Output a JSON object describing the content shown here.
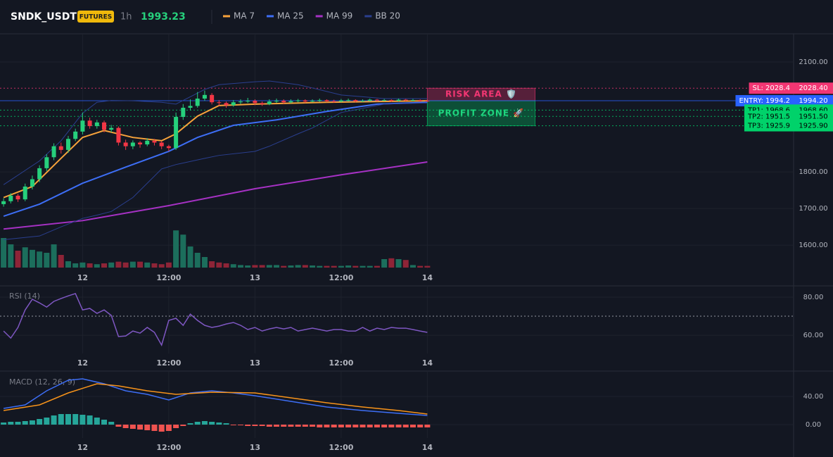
{
  "header": {
    "symbol": "SNDK_USDT",
    "badge": "FUTURES",
    "interval": "1h",
    "price": 1993.23
  },
  "chart_data": [
    {
      "type": "candlestick",
      "xlim": [
        -0.5,
        110
      ],
      "xticks": [
        {
          "value": 11,
          "label": "12"
        },
        {
          "value": 23,
          "label": "12:00"
        },
        {
          "value": 35,
          "label": "13"
        },
        {
          "value": 47,
          "label": "12:00"
        },
        {
          "value": 59,
          "label": "14"
        }
      ],
      "ylim": [
        1535,
        2173
      ],
      "yticks": [
        {
          "value": 1600,
          "label": "1600.00"
        },
        {
          "value": 1700,
          "label": "1700.00"
        },
        {
          "value": 1800,
          "label": "1800.00"
        },
        {
          "value": 2100,
          "label": "2100.00"
        }
      ],
      "grid": true,
      "up_color": "#26d07c",
      "down_color": "#f23645",
      "ohlc": [
        [
          1712,
          1728,
          1705,
          1720
        ],
        [
          1720,
          1742,
          1714,
          1735
        ],
        [
          1735,
          1740,
          1718,
          1725
        ],
        [
          1725,
          1768,
          1720,
          1760
        ],
        [
          1760,
          1790,
          1752,
          1780
        ],
        [
          1780,
          1818,
          1772,
          1810
        ],
        [
          1810,
          1848,
          1802,
          1840
        ],
        [
          1840,
          1878,
          1832,
          1870
        ],
        [
          1870,
          1880,
          1850,
          1860
        ],
        [
          1860,
          1898,
          1852,
          1890
        ],
        [
          1890,
          1918,
          1884,
          1910
        ],
        [
          1910,
          1962,
          1902,
          1940
        ],
        [
          1940,
          1948,
          1918,
          1925
        ],
        [
          1925,
          1942,
          1918,
          1935
        ],
        [
          1935,
          1940,
          1908,
          1915
        ],
        [
          1915,
          1928,
          1908,
          1920
        ],
        [
          1920,
          1924,
          1872,
          1880
        ],
        [
          1880,
          1888,
          1860,
          1870
        ],
        [
          1870,
          1886,
          1862,
          1880
        ],
        [
          1880,
          1884,
          1866,
          1875
        ],
        [
          1875,
          1892,
          1870,
          1885
        ],
        [
          1885,
          1890,
          1872,
          1880
        ],
        [
          1880,
          1884,
          1862,
          1870
        ],
        [
          1870,
          1874,
          1856,
          1865
        ],
        [
          1865,
          1962,
          1860,
          1950
        ],
        [
          1950,
          1985,
          1942,
          1975
        ],
        [
          1975,
          1998,
          1968,
          1980
        ],
        [
          1980,
          2018,
          1975,
          2000
        ],
        [
          2000,
          2022,
          1994,
          2010
        ],
        [
          2010,
          2015,
          1984,
          1990
        ],
        [
          1990,
          1996,
          1980,
          1988
        ],
        [
          1988,
          1992,
          1975,
          1982
        ],
        [
          1982,
          1996,
          1978,
          1990
        ],
        [
          1990,
          1998,
          1985,
          1992
        ],
        [
          1992,
          2002,
          1988,
          1994
        ],
        [
          1994,
          1998,
          1982,
          1988
        ],
        [
          1988,
          1992,
          1980,
          1985
        ],
        [
          1985,
          1998,
          1982,
          1992
        ],
        [
          1992,
          2000,
          1988,
          1994
        ],
        [
          1994,
          1998,
          1986,
          1990
        ],
        [
          1990,
          1998,
          1987,
          1993
        ],
        [
          1993,
          1999,
          1990,
          1995
        ],
        [
          1995,
          1998,
          1988,
          1992
        ],
        [
          1992,
          1998,
          1990,
          1994
        ],
        [
          1994,
          2000,
          1991,
          1996
        ],
        [
          1996,
          1998,
          1990,
          1993
        ],
        [
          1993,
          1997,
          1989,
          1992
        ],
        [
          1992,
          1999,
          1990,
          1995
        ],
        [
          1995,
          2000,
          1992,
          1996
        ],
        [
          1996,
          1998,
          1990,
          1993
        ],
        [
          1993,
          1998,
          1991,
          1994
        ],
        [
          1994,
          2000,
          1992,
          1997
        ],
        [
          1997,
          1999,
          1992,
          1995
        ],
        [
          1995,
          1999,
          1993,
          1996
        ],
        [
          1996,
          1998,
          1991,
          1994
        ],
        [
          1994,
          2000,
          1992,
          1997
        ],
        [
          1997,
          1999,
          1993,
          1995
        ],
        [
          1995,
          1999,
          1993,
          1996
        ],
        [
          1996,
          1998,
          1991,
          1994
        ],
        [
          1994,
          1997,
          1991,
          1993.23
        ]
      ],
      "volume": [
        70,
        55,
        40,
        48,
        42,
        38,
        35,
        55,
        30,
        15,
        10,
        12,
        10,
        8,
        10,
        12,
        14,
        12,
        14,
        14,
        12,
        10,
        8,
        12,
        88,
        78,
        50,
        35,
        25,
        15,
        12,
        10,
        8,
        6,
        5,
        6,
        6,
        6,
        6,
        4,
        5,
        6,
        6,
        5,
        4,
        4,
        4,
        4,
        5,
        4,
        4,
        4,
        4,
        20,
        22,
        20,
        18,
        6,
        4,
        4
      ],
      "volume_lim": [
        0,
        100
      ],
      "volume_up_color": "#1c6e5c",
      "volume_down_color": "#8e2437",
      "series": [
        {
          "name": "MA 7",
          "color": "#f7a23b",
          "x": [
            0,
            4,
            8,
            11,
            14,
            18,
            22,
            24,
            27,
            30,
            35,
            45,
            59
          ],
          "values": [
            1730,
            1760,
            1837,
            1894,
            1913,
            1894,
            1885,
            1904,
            1952,
            1981,
            1985,
            1990,
            1994
          ]
        },
        {
          "name": "MA 25",
          "color": "#3d6ef5",
          "x": [
            0,
            5,
            11,
            17,
            23,
            27,
            32,
            38,
            45,
            52,
            59
          ],
          "values": [
            1679,
            1712,
            1769,
            1813,
            1856,
            1894,
            1927,
            1942,
            1965,
            1985,
            1990
          ]
        },
        {
          "name": "MA 99",
          "color": "#a631c4",
          "x": [
            0,
            11,
            23,
            35,
            47,
            59
          ],
          "values": [
            1644,
            1667,
            1708,
            1754,
            1792,
            1827
          ]
        },
        {
          "name": "BB 20",
          "color": "#2a3f8f",
          "x": [
            0,
            5,
            8,
            11,
            13,
            15,
            18,
            22,
            24,
            28,
            30,
            35,
            37,
            41,
            43,
            47,
            53,
            59
          ],
          "upper": [
            1765,
            1830,
            1885,
            1960,
            1990,
            1995,
            1994,
            1990,
            1985,
            2025,
            2038,
            2046,
            2048,
            2038,
            2029,
            2010,
            2000,
            2000
          ],
          "lower": [
            1615,
            1625,
            1650,
            1673,
            1682,
            1692,
            1730,
            1808,
            1820,
            1837,
            1845,
            1856,
            1870,
            1904,
            1920,
            1962,
            1985,
            1988
          ]
        }
      ],
      "levels": [
        {
          "label": "SL: 2028.4",
          "price_label": "2028.40",
          "value": 2028.4,
          "color": "#f23673",
          "text_color": "#ffffff",
          "style": "dotted"
        },
        {
          "label": "ENTRY: 1994.2",
          "price_label": "1994.20",
          "value": 1994.2,
          "color": "#2962ff",
          "text_color": "#ffffff",
          "style": "solid"
        },
        {
          "label": "TP1: 1968.6",
          "price_label": "1968.60",
          "value": 1968.6,
          "color": "#00d26a",
          "text_color": "#000000",
          "style": "dotted"
        },
        {
          "label": "TP2: 1951.5",
          "price_label": "1951.50",
          "value": 1951.5,
          "color": "#00d26a",
          "text_color": "#000000",
          "style": "dotted"
        },
        {
          "label": "TP3: 1925.9",
          "price_label": "1925.90",
          "value": 1925.9,
          "color": "#00d26a",
          "text_color": "#000000",
          "style": "dotted"
        }
      ],
      "zones": [
        {
          "label": "RISK AREA 🛡️",
          "from": 1994.2,
          "to": 2028.4,
          "x_range": [
            59,
            74
          ],
          "color": "#f23673",
          "text_color": "#f23673"
        },
        {
          "label": "PROFIT ZONE 🚀",
          "from": 1925.9,
          "to": 1994.2,
          "x_range": [
            59,
            74
          ],
          "color": "#00d26a",
          "text_color": "#1fd67f"
        }
      ]
    },
    {
      "type": "line",
      "label": "RSI (14)",
      "xlim": [
        -0.5,
        110
      ],
      "xticks": [
        {
          "value": 11,
          "label": "12"
        },
        {
          "value": 23,
          "label": "12:00"
        },
        {
          "value": 35,
          "label": "13"
        },
        {
          "value": 47,
          "label": "12:00"
        },
        {
          "value": 59,
          "label": "14"
        }
      ],
      "ylim": [
        50.4,
        85.2
      ],
      "yticks": [
        {
          "value": 60,
          "label": "60.00"
        },
        {
          "value": 80,
          "label": "80.00"
        }
      ],
      "hline": 70,
      "series": [
        {
          "color": "#7e57c2",
          "values": [
            62.2,
            58.5,
            64.1,
            73.3,
            78.9,
            77.0,
            74.8,
            77.8,
            79.3,
            80.7,
            81.9,
            73.3,
            74.1,
            71.5,
            73.3,
            70.4,
            59.3,
            59.6,
            62.2,
            61.1,
            64.1,
            61.5,
            54.8,
            67.8,
            68.9,
            65.2,
            71.1,
            67.8,
            65.2,
            64.1,
            64.8,
            65.9,
            66.7,
            65.2,
            63.0,
            64.1,
            62.2,
            63.3,
            64.1,
            63.3,
            64.1,
            62.2,
            63.0,
            63.7,
            63.0,
            62.2,
            63.0,
            63.0,
            62.2,
            62.2,
            64.1,
            62.2,
            63.7,
            63.0,
            64.1,
            63.7,
            63.7,
            63.0,
            62.2,
            61.5
          ]
        }
      ]
    },
    {
      "type": "line",
      "label": "MACD (12, 26, 9)",
      "xlim": [
        -0.5,
        110
      ],
      "xticks": [
        {
          "value": 11,
          "label": "12"
        },
        {
          "value": 23,
          "label": "12:00"
        },
        {
          "value": 35,
          "label": "13"
        },
        {
          "value": 47,
          "label": "12:00"
        },
        {
          "value": 59,
          "label": "14"
        }
      ],
      "ylim": [
        -19,
        73
      ],
      "yticks": [
        {
          "value": 0,
          "label": "0.00"
        },
        {
          "value": 40,
          "label": "40.00"
        }
      ],
      "histogram": [
        3,
        4,
        4,
        5,
        6,
        8,
        10,
        13,
        15,
        15,
        15,
        14,
        13,
        10,
        7,
        4,
        -3,
        -5,
        -6,
        -7,
        -8,
        -9,
        -10,
        -9,
        -5,
        -2,
        2,
        4,
        5,
        4,
        3,
        2,
        -1,
        -1,
        -2,
        -2,
        -2,
        -3,
        -3,
        -3,
        -3,
        -3,
        -3,
        -3,
        -4,
        -4,
        -4,
        -4,
        -4,
        -4,
        -4,
        -4,
        -4,
        -4,
        -4,
        -4,
        -4,
        -4,
        -4,
        -4
      ],
      "hist_up_color": "#26a69a",
      "hist_down_color": "#ef5350",
      "series": [
        {
          "color": "#3d6ef5",
          "x": [
            0,
            3,
            6,
            9,
            11,
            14,
            17,
            20,
            23,
            26,
            29,
            32,
            35,
            40,
            45,
            50,
            55,
            59
          ],
          "values": [
            23,
            28,
            48,
            63,
            65,
            58,
            48,
            43,
            35,
            45,
            48,
            45,
            41,
            33,
            25,
            20,
            16,
            13
          ]
        },
        {
          "color": "#f7931a",
          "x": [
            0,
            5,
            9,
            13,
            16,
            20,
            24,
            29,
            35,
            40,
            45,
            50,
            55,
            59
          ],
          "values": [
            20,
            28,
            45,
            58,
            55,
            48,
            43,
            46,
            45,
            38,
            31,
            25,
            20,
            15
          ]
        }
      ]
    }
  ]
}
